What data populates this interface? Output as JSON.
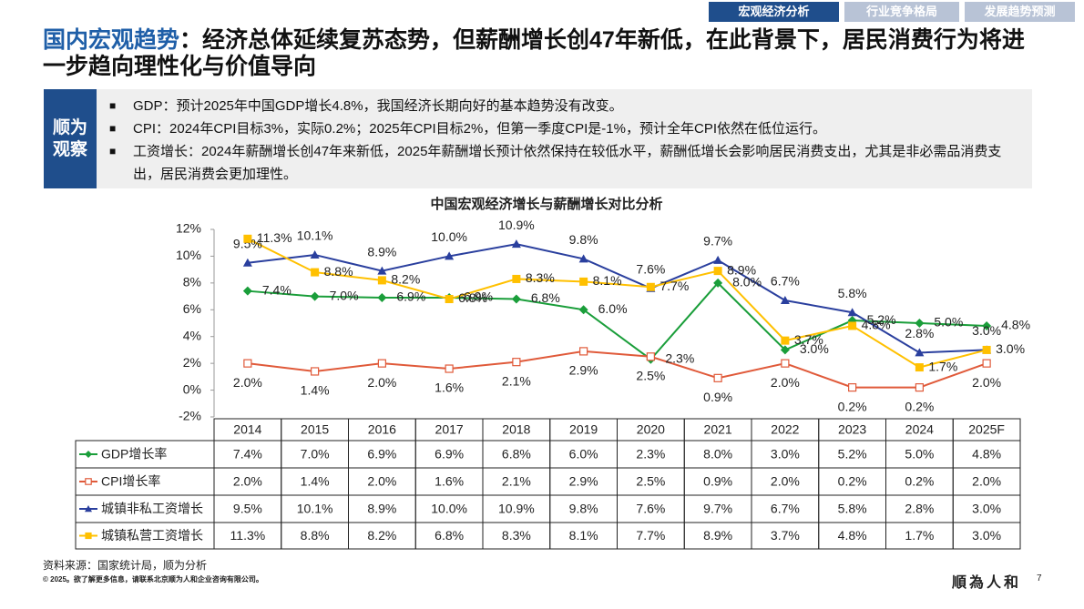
{
  "tabs": [
    "宏观经济分析",
    "行业竞争格局",
    "发展趋势预测"
  ],
  "headline": {
    "highlight": "国内宏观趋势",
    "text": "：经济总体延续复苏态势，但薪酬增长创47年新低，在此背景下，居民消费行为将进一步趋向理性化与价值导向"
  },
  "observation": {
    "label": "顺为观察",
    "bullets": [
      "GDP：预计2025年中国GDP增长4.8%，我国经济长期向好的基本趋势没有改变。",
      "CPI：2024年CPI目标3%，实际0.2%；2025年CPI目标2%，但第一季度CPI是-1%，预计全年CPI依然在低位运行。",
      "工资增长：2024年薪酬增长创47年来新低，2025年薪酬增长预计依然保持在较低水平，薪酬低增长会影响居民消费支出，尤其是非必需品消费支出，居民消费会更加理性。"
    ]
  },
  "chart_data": {
    "type": "line",
    "title": "中国宏观经济增长与薪酬增长对比分析",
    "categories": [
      "2014",
      "2015",
      "2016",
      "2017",
      "2018",
      "2019",
      "2020",
      "2021",
      "2022",
      "2023",
      "2024",
      "2025F"
    ],
    "series": [
      {
        "name": "GDP增长率",
        "color": "#1a9e3a",
        "marker": "diamond",
        "values": [
          7.4,
          7.0,
          6.9,
          6.9,
          6.8,
          6.0,
          2.3,
          8.0,
          3.0,
          5.2,
          5.0,
          4.8
        ],
        "value_labels": [
          "7.4%",
          "7.0%",
          "6.9%",
          "6.9%",
          "6.8%",
          "6.0%",
          "2.3%",
          "8.0%",
          "3.0%",
          "5.2%",
          "5.0%",
          "4.8%"
        ]
      },
      {
        "name": "CPI增长率",
        "color": "#e05a3a",
        "marker": "open-square",
        "values": [
          2.0,
          1.4,
          2.0,
          1.6,
          2.1,
          2.9,
          2.5,
          0.9,
          2.0,
          0.2,
          0.2,
          2.0
        ],
        "value_labels": [
          "2.0%",
          "1.4%",
          "2.0%",
          "1.6%",
          "2.1%",
          "2.9%",
          "2.5%",
          "0.9%",
          "2.0%",
          "0.2%",
          "0.2%",
          "2.0%"
        ]
      },
      {
        "name": "城镇非私工资增长",
        "color": "#2a3f9e",
        "marker": "triangle",
        "values": [
          9.5,
          10.1,
          8.9,
          10.0,
          10.9,
          9.8,
          7.6,
          9.7,
          6.7,
          5.8,
          2.8,
          3.0
        ],
        "value_labels": [
          "9.5%",
          "10.1%",
          "8.9%",
          "10.0%",
          "10.9%",
          "9.8%",
          "7.6%",
          "9.7%",
          "6.7%",
          "5.8%",
          "2.8%",
          "3.0%"
        ]
      },
      {
        "name": "城镇私营工资增长",
        "color": "#ffc000",
        "marker": "square",
        "values": [
          11.3,
          8.8,
          8.2,
          6.8,
          8.3,
          8.1,
          7.7,
          8.9,
          3.7,
          4.8,
          1.7,
          3.0
        ],
        "value_labels": [
          "11.3%",
          "8.8%",
          "8.2%",
          "6.8%",
          "8.3%",
          "8.1%",
          "7.7%",
          "8.9%",
          "3.7%",
          "4.8%",
          "1.7%",
          "3.0%"
        ]
      }
    ],
    "ylim": [
      -2,
      12
    ],
    "yticks": [
      {
        "value": -2,
        "label": "-2%"
      },
      {
        "value": 0,
        "label": "0%"
      },
      {
        "value": 2,
        "label": "2%"
      },
      {
        "value": 4,
        "label": "4%"
      },
      {
        "value": 6,
        "label": "6%"
      },
      {
        "value": 8,
        "label": "8%"
      },
      {
        "value": 10,
        "label": "10%"
      },
      {
        "value": 12,
        "label": "12%"
      }
    ],
    "grid": false
  },
  "footer": {
    "source": "资料来源：国家统计局，顺为分析",
    "copyright": "© 2025。欲了解更多信息，请联系北京顺为人和企业咨询有限公司。",
    "logo": "順為人和",
    "page": 7
  }
}
